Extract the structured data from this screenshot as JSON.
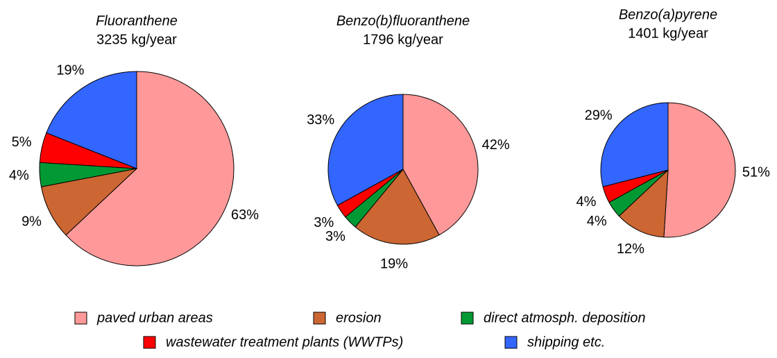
{
  "chart_data": [
    {
      "type": "pie",
      "title": "Fluoranthene",
      "subtitle": "3235 kg/year",
      "values": [
        63,
        9,
        4,
        5,
        19
      ],
      "value_labels": [
        "63%",
        "9%",
        "4%",
        "5%",
        "19%"
      ]
    },
    {
      "type": "pie",
      "title": "Benzo(b)fluoranthene",
      "subtitle": "1796 kg/year",
      "values": [
        42,
        19,
        3,
        3,
        33
      ],
      "value_labels": [
        "42%",
        "19%",
        "3%",
        "3%",
        "33%"
      ]
    },
    {
      "type": "pie",
      "title": "Benzo(a)pyrene",
      "subtitle": "1401 kg/year",
      "values": [
        51,
        12,
        4,
        4,
        29
      ],
      "value_labels": [
        "51%",
        "12%",
        "4%",
        "4%",
        "29%"
      ]
    }
  ],
  "legend": {
    "categories": [
      "paved urban areas",
      "erosion",
      "direct atmosph. deposition",
      "wastewater treatment plants (WWTPs)",
      "shipping etc."
    ],
    "colors": [
      "#ff9999",
      "#cc6633",
      "#009933",
      "#ff0000",
      "#3366ff"
    ]
  }
}
